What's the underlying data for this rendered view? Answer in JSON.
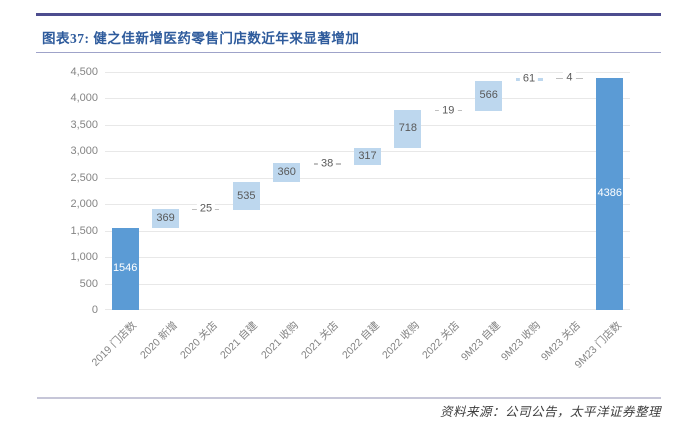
{
  "header": {
    "title": "图表37: 健之佳新增医药零售门店数近年来显著增加"
  },
  "footer": {
    "source": "资料来源：公司公告，太平洋证券整理"
  },
  "colors": {
    "rule_dark": "#4d4d8f",
    "rule_light": "#9fa3c9",
    "footer_rule": "#c6c6d8",
    "title_text": "#2e5b9c",
    "bar_total": "#5b9bd5",
    "bar_increase": "#bdd7ee",
    "bar_decrease": "#bfbfbf",
    "label_on_total": "#ffffff",
    "label_default": "#595959",
    "axis_text": "#848484",
    "gridline": "#e8e8e8"
  },
  "chart_data": {
    "type": "bar",
    "subtype": "waterfall",
    "title": "健之佳新增医药零售门店数近年来显著增加",
    "xlabel": "",
    "ylabel": "",
    "grid": true,
    "legend": "none",
    "ylim": [
      0,
      4500
    ],
    "ytick_step": 500,
    "yticks": [
      {
        "value": 0,
        "label": "0"
      },
      {
        "value": 500,
        "label": "500"
      },
      {
        "value": 1000,
        "label": "1,000"
      },
      {
        "value": 1500,
        "label": "1,500"
      },
      {
        "value": 2000,
        "label": "2,000"
      },
      {
        "value": 2500,
        "label": "2,500"
      },
      {
        "value": 3000,
        "label": "3,000"
      },
      {
        "value": 3500,
        "label": "3,500"
      },
      {
        "value": 4000,
        "label": "4,000"
      },
      {
        "value": 4500,
        "label": "4,500"
      }
    ],
    "categories": [
      "2019 门店数",
      "2020 新增",
      "2020 关店",
      "2021 自建",
      "2021 收购",
      "2021 关店",
      "2022 自建",
      "2022 收购",
      "2022 关店",
      "9M23 自建",
      "9M23 收购",
      "9M23 关店",
      "9M23 门店数"
    ],
    "bars": [
      {
        "label": "2019 门店数",
        "value": 1546,
        "kind": "total",
        "start": 0,
        "end": 1546
      },
      {
        "label": "2020 新增",
        "value": 369,
        "kind": "increase",
        "start": 1546,
        "end": 1915
      },
      {
        "label": "2020 关店",
        "value": 25,
        "kind": "decrease",
        "start": 1915,
        "end": 1890
      },
      {
        "label": "2021 自建",
        "value": 535,
        "kind": "increase",
        "start": 1890,
        "end": 2425
      },
      {
        "label": "2021 收购",
        "value": 360,
        "kind": "increase",
        "start": 2425,
        "end": 2785
      },
      {
        "label": "2021 关店",
        "value": 38,
        "kind": "decrease",
        "start": 2785,
        "end": 2747
      },
      {
        "label": "2022 自建",
        "value": 317,
        "kind": "increase",
        "start": 2747,
        "end": 3064
      },
      {
        "label": "2022 收购",
        "value": 718,
        "kind": "increase",
        "start": 3064,
        "end": 3782
      },
      {
        "label": "2022 关店",
        "value": 19,
        "kind": "decrease",
        "start": 3782,
        "end": 3763
      },
      {
        "label": "9M23 自建",
        "value": 566,
        "kind": "increase",
        "start": 3763,
        "end": 4329
      },
      {
        "label": "9M23 收购",
        "value": 61,
        "kind": "increase",
        "start": 4329,
        "end": 4390
      },
      {
        "label": "9M23 关店",
        "value": 4,
        "kind": "decrease",
        "start": 4390,
        "end": 4386
      },
      {
        "label": "9M23 门店数",
        "value": 4386,
        "kind": "total",
        "start": 0,
        "end": 4386
      }
    ]
  }
}
